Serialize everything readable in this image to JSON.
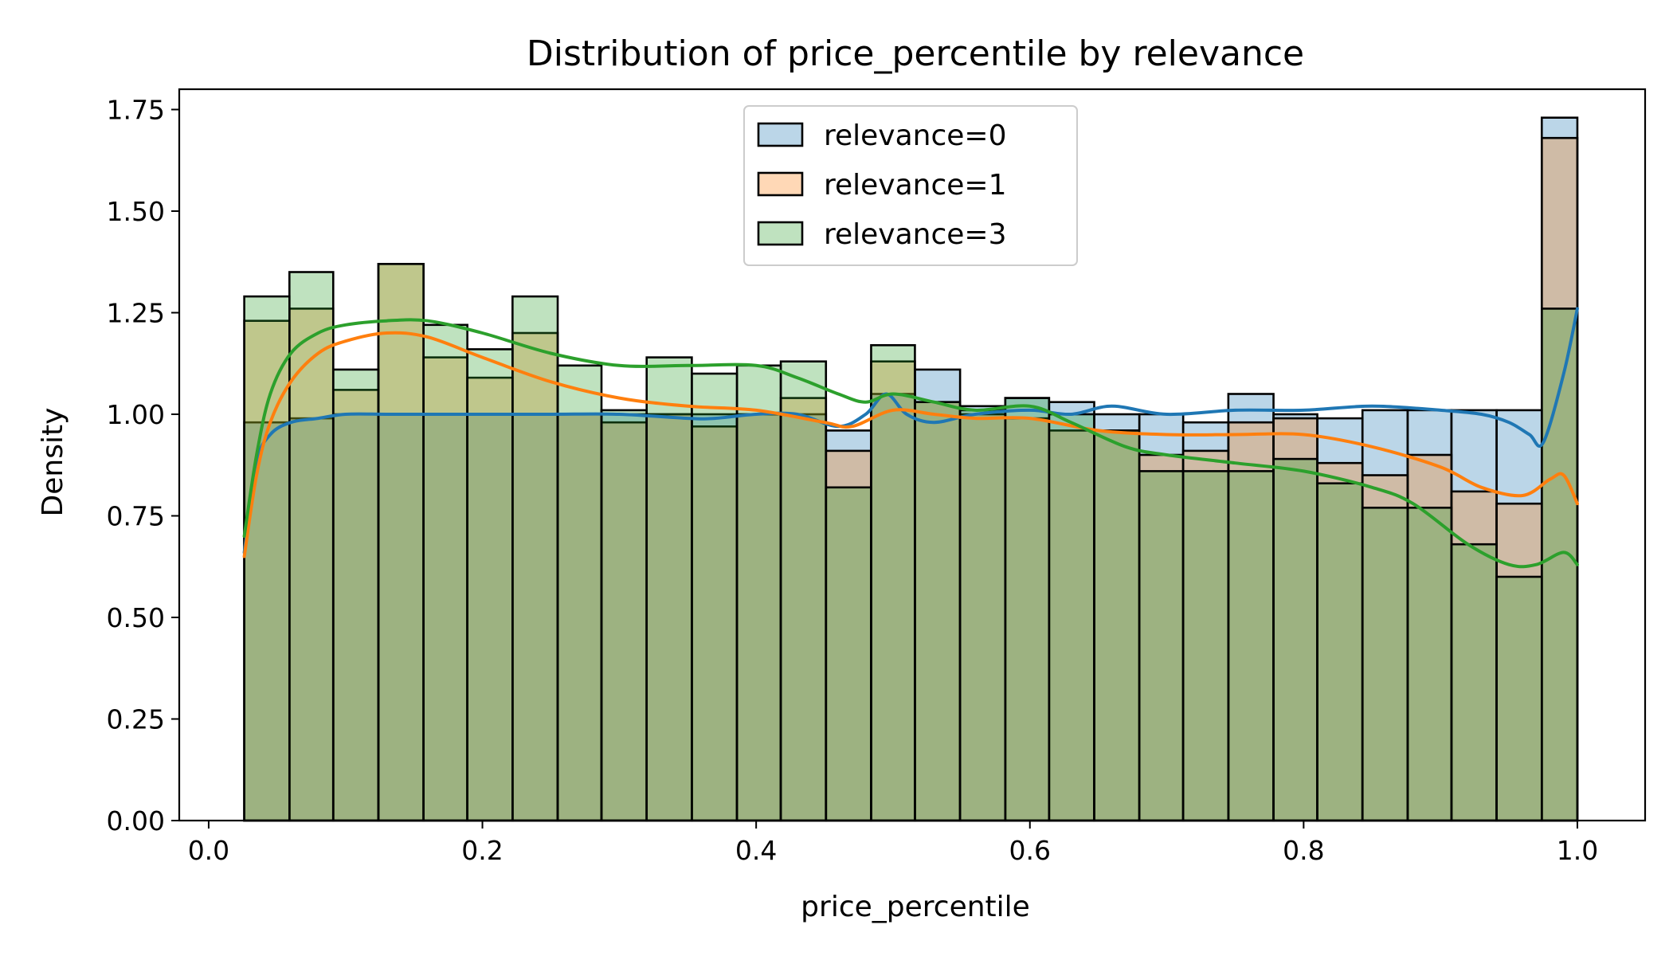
{
  "chart_data": {
    "type": "histogram",
    "title": "Distribution of price_percentile by relevance",
    "xlabel": "price_percentile",
    "ylabel": "Density",
    "xlim": [
      -0.0215,
      1.0495
    ],
    "ylim": [
      0,
      1.8
    ],
    "x_ticks": [
      0.0,
      0.2,
      0.4,
      0.6,
      0.8,
      1.0
    ],
    "x_tick_labels": [
      "0.0",
      "0.2",
      "0.4",
      "0.6",
      "0.8",
      "1.0"
    ],
    "y_ticks": [
      0.0,
      0.25,
      0.5,
      0.75,
      1.0,
      1.25,
      1.5,
      1.75
    ],
    "y_tick_labels": [
      "0.00",
      "0.25",
      "0.50",
      "0.75",
      "1.00",
      "1.25",
      "1.50",
      "1.75"
    ],
    "legend_position": "top-center",
    "grid": false,
    "bin_edges": [
      0.026,
      0.059,
      0.091,
      0.124,
      0.157,
      0.189,
      0.222,
      0.255,
      0.287,
      0.32,
      0.353,
      0.386,
      0.418,
      0.451,
      0.484,
      0.516,
      0.549,
      0.582,
      0.614,
      0.647,
      0.68,
      0.712,
      0.745,
      0.778,
      0.81,
      0.843,
      0.876,
      0.908,
      0.941,
      0.974,
      1.0
    ],
    "series": [
      {
        "name": "relevance=0",
        "color": "#1f77b4",
        "values": [
          0.98,
          0.99,
          1.0,
          1.0,
          1.0,
          1.0,
          1.0,
          1.0,
          1.0,
          1.0,
          1.0,
          1.0,
          1.0,
          0.96,
          1.05,
          1.11,
          1.02,
          1.04,
          1.03,
          1.0,
          1.0,
          0.98,
          1.05,
          1.0,
          0.99,
          1.01,
          1.01,
          1.01,
          1.01,
          1.73
        ],
        "kde_x": [
          0.026,
          0.035,
          0.045,
          0.06,
          0.08,
          0.1,
          0.13,
          0.16,
          0.2,
          0.25,
          0.3,
          0.35,
          0.37,
          0.4,
          0.43,
          0.46,
          0.48,
          0.495,
          0.51,
          0.53,
          0.56,
          0.6,
          0.63,
          0.66,
          0.7,
          0.75,
          0.8,
          0.85,
          0.9,
          0.93,
          0.95,
          0.965,
          0.975,
          0.99,
          1.0
        ],
        "kde_y": [
          0.66,
          0.88,
          0.95,
          0.98,
          0.99,
          1.0,
          1.0,
          1.0,
          1.0,
          1.0,
          1.0,
          0.99,
          0.99,
          1.0,
          1.0,
          0.97,
          1.0,
          1.05,
          1.0,
          0.98,
          1.0,
          1.01,
          1.0,
          1.02,
          1.0,
          1.01,
          1.01,
          1.02,
          1.01,
          1.0,
          0.98,
          0.95,
          0.93,
          1.1,
          1.26
        ]
      },
      {
        "name": "relevance=1",
        "color": "#ff7f0e",
        "values": [
          1.23,
          1.26,
          1.06,
          1.37,
          1.14,
          1.09,
          1.2,
          1.0,
          0.98,
          1.0,
          0.97,
          1.0,
          1.04,
          0.91,
          1.13,
          1.03,
          1.0,
          0.99,
          0.96,
          0.96,
          0.9,
          0.91,
          0.98,
          0.99,
          0.88,
          0.85,
          0.9,
          0.81,
          0.78,
          1.68
        ],
        "kde_x": [
          0.026,
          0.035,
          0.045,
          0.06,
          0.08,
          0.1,
          0.13,
          0.16,
          0.2,
          0.25,
          0.3,
          0.35,
          0.4,
          0.45,
          0.47,
          0.5,
          0.53,
          0.56,
          0.6,
          0.65,
          0.7,
          0.75,
          0.8,
          0.85,
          0.9,
          0.93,
          0.96,
          0.98,
          0.99,
          1.0
        ],
        "kde_y": [
          0.65,
          0.85,
          0.98,
          1.08,
          1.15,
          1.18,
          1.2,
          1.19,
          1.14,
          1.08,
          1.04,
          1.02,
          1.01,
          0.98,
          0.97,
          1.01,
          1.0,
          0.99,
          0.99,
          0.96,
          0.95,
          0.95,
          0.95,
          0.92,
          0.87,
          0.82,
          0.8,
          0.84,
          0.85,
          0.78
        ]
      },
      {
        "name": "relevance=3",
        "color": "#2ca02c",
        "values": [
          1.29,
          1.35,
          1.11,
          1.37,
          1.22,
          1.16,
          1.29,
          1.12,
          1.01,
          1.14,
          1.1,
          1.12,
          1.13,
          0.82,
          1.17,
          1.03,
          1.01,
          1.04,
          1.0,
          0.96,
          0.86,
          0.86,
          0.86,
          0.89,
          0.83,
          0.77,
          0.77,
          0.68,
          0.6,
          1.26
        ],
        "kde_x": [
          0.026,
          0.035,
          0.045,
          0.06,
          0.08,
          0.1,
          0.13,
          0.16,
          0.2,
          0.25,
          0.3,
          0.35,
          0.4,
          0.43,
          0.46,
          0.48,
          0.5,
          0.53,
          0.56,
          0.6,
          0.63,
          0.67,
          0.7,
          0.75,
          0.8,
          0.85,
          0.88,
          0.92,
          0.95,
          0.97,
          0.99,
          1.0
        ],
        "kde_y": [
          0.7,
          0.9,
          1.05,
          1.15,
          1.2,
          1.22,
          1.23,
          1.23,
          1.2,
          1.15,
          1.12,
          1.12,
          1.12,
          1.09,
          1.05,
          1.03,
          1.05,
          1.03,
          1.01,
          1.02,
          0.98,
          0.92,
          0.9,
          0.88,
          0.86,
          0.82,
          0.78,
          0.68,
          0.63,
          0.63,
          0.66,
          0.63
        ]
      }
    ]
  }
}
